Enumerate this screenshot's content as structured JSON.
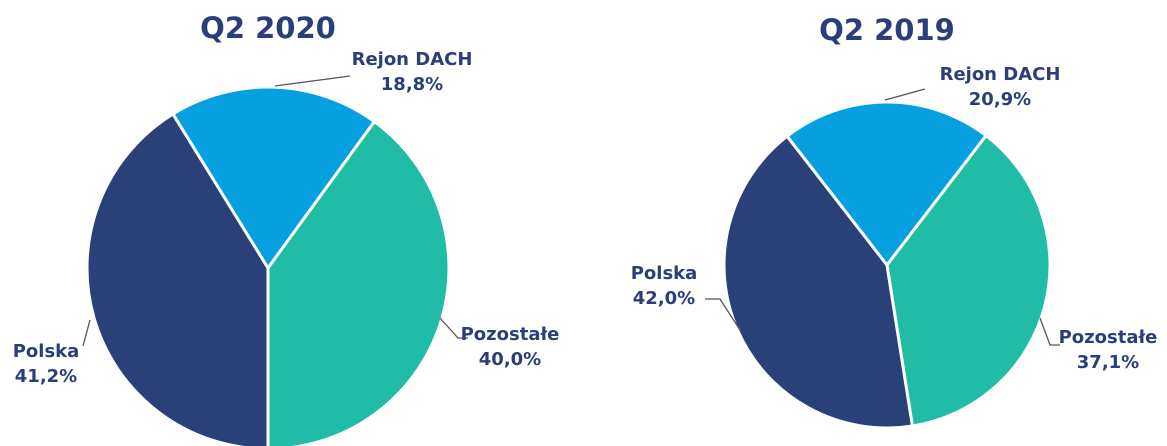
{
  "chart_data": [
    {
      "type": "pie",
      "title": "Q2 2020",
      "categories": [
        "Polska",
        "Rejon DACH",
        "Pozostałe"
      ],
      "values": [
        41.2,
        18.8,
        40.0
      ],
      "value_labels": [
        "41,2%",
        "18,8%",
        "40,0%"
      ],
      "colors": [
        "#2a4079",
        "#069fe0",
        "#21bca6"
      ]
    },
    {
      "type": "pie",
      "title": "Q2 2019",
      "categories": [
        "Polska",
        "Rejon DACH",
        "Pozostałe"
      ],
      "values": [
        42.0,
        20.9,
        37.1
      ],
      "value_labels": [
        "42,0%",
        "20,9%",
        "37,1%"
      ],
      "colors": [
        "#2a4079",
        "#069fe0",
        "#21bca6"
      ]
    }
  ]
}
